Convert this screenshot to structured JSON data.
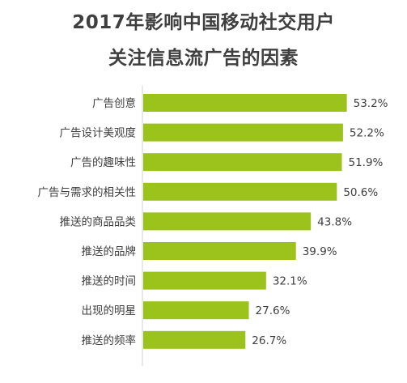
{
  "chart_data": {
    "type": "bar",
    "orientation": "horizontal",
    "title": "2017年影响中国移动社交用户",
    "subtitle": "关注信息流广告的因素",
    "categories": [
      "广告创意",
      "广告设计美观度",
      "广告的趣味性",
      "广告与需求的相关性",
      "推送的商品品类",
      "推送的品牌",
      "推送的时间",
      "出现的明星",
      "推送的频率"
    ],
    "values": [
      53.2,
      52.2,
      51.9,
      50.6,
      43.8,
      39.9,
      32.1,
      27.6,
      26.7
    ],
    "value_labels": [
      "53.2%",
      "52.2%",
      "51.9%",
      "50.6%",
      "43.8%",
      "39.9%",
      "32.1%",
      "27.6%",
      "26.7%"
    ],
    "xlabel": "",
    "ylabel": "",
    "grid": false,
    "legend": "none",
    "bar_color": "#9bc31c",
    "axis_color": "#d0d0d0",
    "text_color": "#3f3f3f"
  }
}
